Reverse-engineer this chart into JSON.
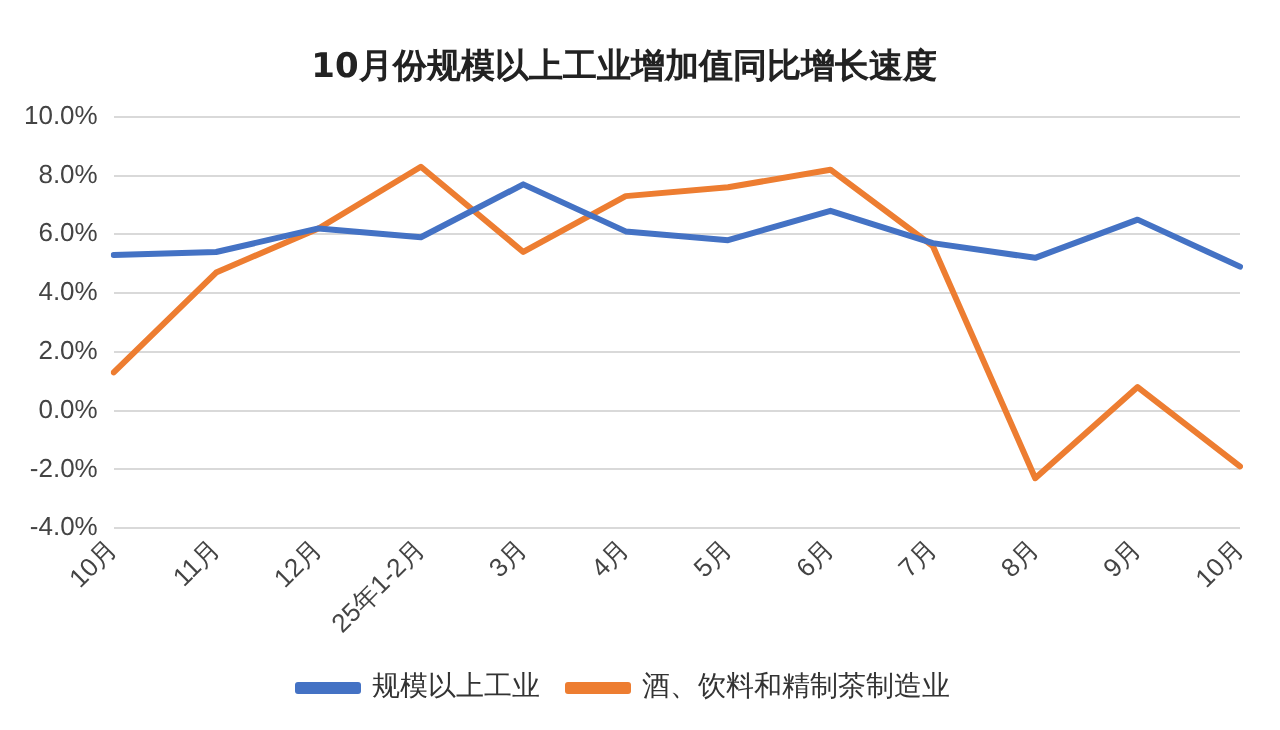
{
  "chart_data": {
    "type": "line",
    "title": "10月份规模以上工业增加值同比增长速度",
    "categories": [
      "10月",
      "11月",
      "12月",
      "25年1-2月",
      "3月",
      "4月",
      "5月",
      "6月",
      "7月",
      "8月",
      "9月",
      "10月"
    ],
    "series": [
      {
        "name": "规模以上工业",
        "color": "#4472c4",
        "values": [
          5.3,
          5.4,
          6.2,
          5.9,
          7.7,
          6.1,
          5.8,
          6.8,
          5.7,
          5.2,
          6.5,
          4.9
        ]
      },
      {
        "name": "酒、饮料和精制茶制造业",
        "color": "#ed7d31",
        "values": [
          1.3,
          4.7,
          6.2,
          8.3,
          5.4,
          7.3,
          7.6,
          8.2,
          5.6,
          -2.3,
          0.8,
          -1.9
        ]
      }
    ],
    "ylim": [
      -4,
      10
    ],
    "yticks": [
      {
        "value": -4,
        "label": "-4.0%"
      },
      {
        "value": -2,
        "label": "-2.0%"
      },
      {
        "value": 0,
        "label": "0.0%"
      },
      {
        "value": 2,
        "label": "2.0%"
      },
      {
        "value": 4,
        "label": "4.0%"
      },
      {
        "value": 6,
        "label": "6.0%"
      },
      {
        "value": 8,
        "label": "8.0%"
      },
      {
        "value": 10,
        "label": "10.0%"
      }
    ],
    "grid": "y",
    "legend": "bottom",
    "marker": "none",
    "line_style": "solid"
  }
}
